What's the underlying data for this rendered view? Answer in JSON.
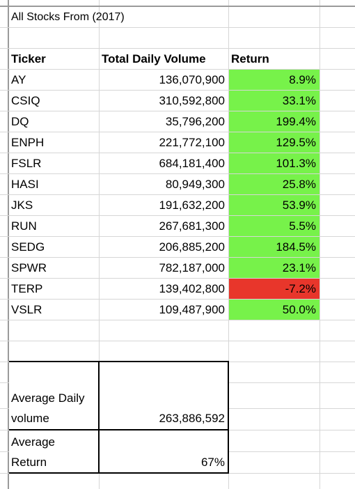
{
  "sheet": {
    "title": "All Stocks From (2017)",
    "headers": {
      "ticker": "Ticker",
      "volume": "Total Daily Volume",
      "return": "Return"
    },
    "rows": [
      {
        "ticker": "AY",
        "volume": "136,070,900",
        "ret": "8.9%"
      },
      {
        "ticker": "CSIQ",
        "volume": "310,592,800",
        "ret": "33.1%"
      },
      {
        "ticker": "DQ",
        "volume": "35,796,200",
        "ret": "199.4%"
      },
      {
        "ticker": "ENPH",
        "volume": "221,772,100",
        "ret": "129.5%"
      },
      {
        "ticker": "FSLR",
        "volume": "684,181,400",
        "ret": "101.3%"
      },
      {
        "ticker": "HASI",
        "volume": "80,949,300",
        "ret": "25.8%"
      },
      {
        "ticker": "JKS",
        "volume": "191,632,200",
        "ret": "53.9%"
      },
      {
        "ticker": "RUN",
        "volume": "267,681,300",
        "ret": "5.5%"
      },
      {
        "ticker": "SEDG",
        "volume": "206,885,200",
        "ret": "184.5%"
      },
      {
        "ticker": "SPWR",
        "volume": "782,187,000",
        "ret": "23.1%"
      },
      {
        "ticker": "TERP",
        "volume": "139,402,800",
        "ret": "-7.2%"
      },
      {
        "ticker": "VSLR",
        "volume": "109,487,900",
        "ret": "50.0%"
      }
    ],
    "summary": {
      "avg_volume_label_1": "Average Daily",
      "avg_volume_label_2": "volume",
      "avg_volume_value": "263,886,592",
      "avg_return_label_1": "Average",
      "avg_return_label_2": "Return",
      "avg_return_value": "67%"
    },
    "colors": {
      "positive": "#77f24a",
      "negative": "#e8362b",
      "grid": "#d6d6d6"
    }
  }
}
